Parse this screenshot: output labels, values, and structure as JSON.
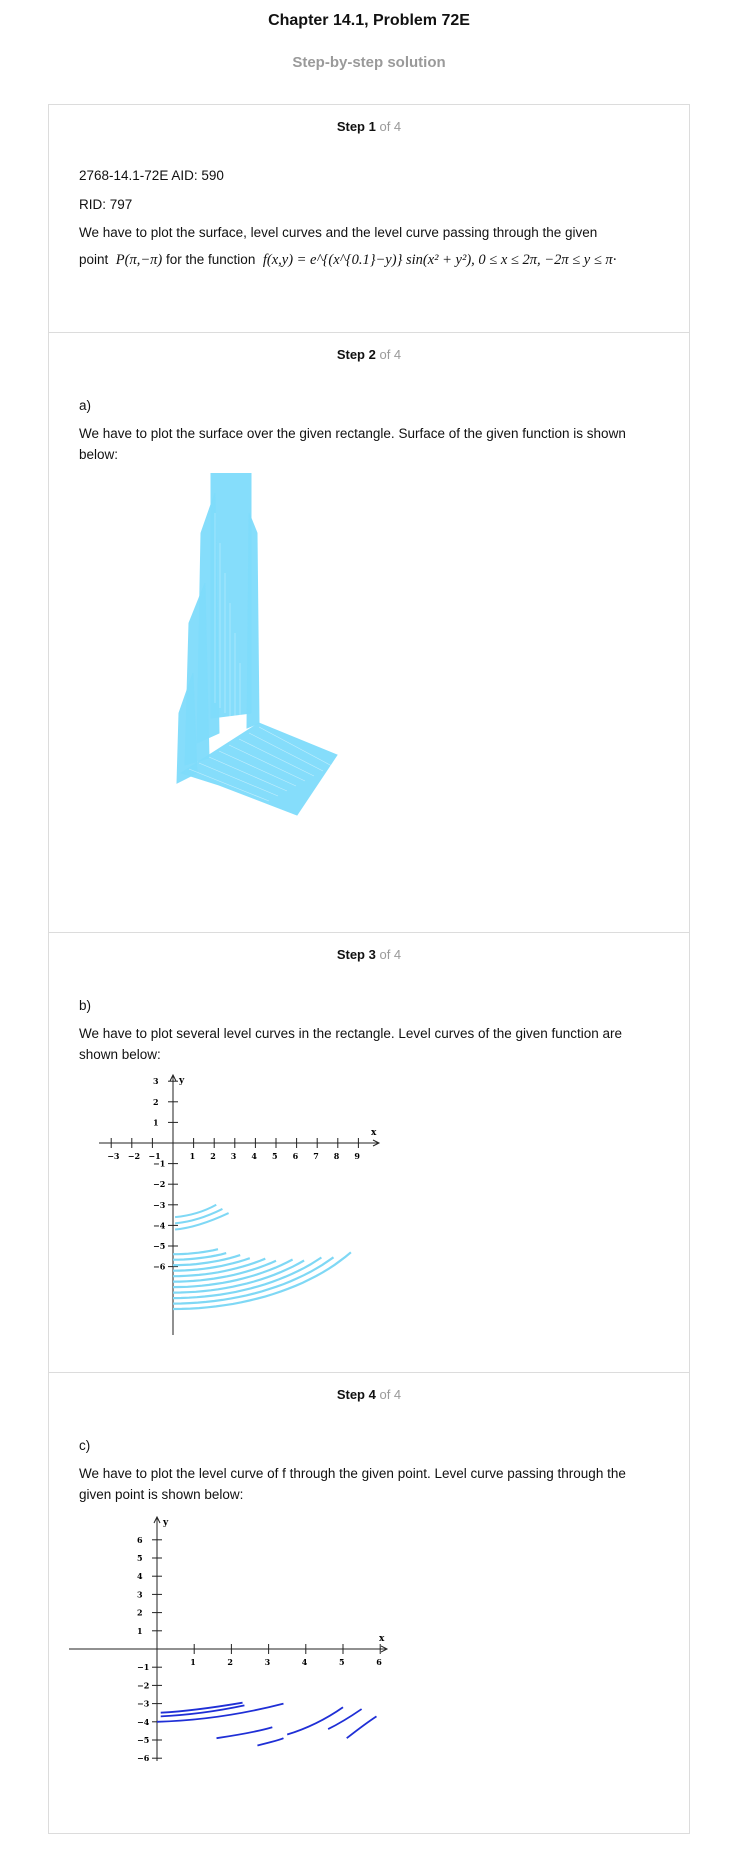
{
  "header": {
    "title": "Chapter 14.1, Problem 72E",
    "subtitle": "Step-by-step solution"
  },
  "steps": [
    {
      "label": "Step 1",
      "of": "of 4",
      "aid": "2768-14.1-72E AID: 590",
      "rid": "RID: 797",
      "text1": "We have to plot the surface, level curves and the level curve passing through the given",
      "text2a": "point",
      "point": "P(π,−π)",
      "text2b": "for the function",
      "func": "f(x,y) = e^{(x^{0.1}−y)} sin(x² + y²), 0 ≤ x ≤ 2π, −2π ≤ y ≤ π·"
    },
    {
      "label": "Step 2",
      "of": "of 4",
      "part": "a)",
      "text": "We have to plot the surface over the given rectangle. Surface of the given function is shown below:"
    },
    {
      "label": "Step 3",
      "of": "of 4",
      "part": "b)",
      "text": "We have to plot several level curves in the rectangle. Level curves of the given function are shown below:"
    },
    {
      "label": "Step 4",
      "of": "of 4",
      "part": "c)",
      "text": "We have to plot the level curve of f through the given point. Level curve passing through the given point is shown below:"
    }
  ],
  "plot_b": {
    "x_label": "x",
    "y_label": "y",
    "x_ticks": [
      "−3",
      "−2",
      "−1",
      "1",
      "2",
      "3",
      "4",
      "5",
      "6",
      "7",
      "8",
      "9"
    ],
    "y_ticks": [
      "3",
      "2",
      "1",
      "−1",
      "−2",
      "−3",
      "−4",
      "−5",
      "−6"
    ],
    "curve_color": "#7fd8f5"
  },
  "plot_c": {
    "x_label": "x",
    "y_label": "y",
    "x_ticks": [
      "1",
      "2",
      "3",
      "4",
      "5",
      "6"
    ],
    "y_ticks": [
      "6",
      "5",
      "4",
      "3",
      "2",
      "1",
      "−1",
      "−2",
      "−3",
      "−4",
      "−5",
      "−6"
    ],
    "curve_color": "#1f2fd6"
  },
  "surface_color": "#7fdcfb"
}
